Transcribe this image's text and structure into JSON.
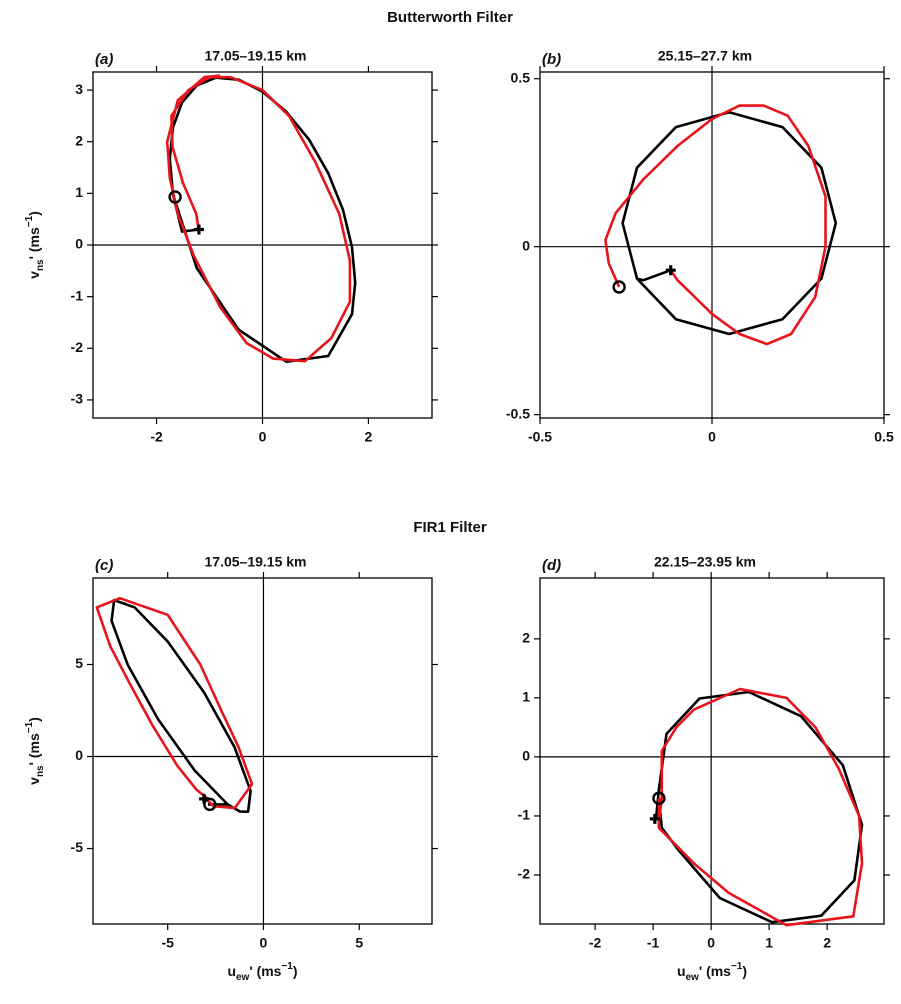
{
  "titles": [
    "Butterworth Filter",
    "FIR1 Filter"
  ],
  "chart_data": [
    {
      "type": "line",
      "label": "(a)",
      "title": "17.05–19.15 km",
      "ylabel": [
        "v",
        "ns",
        "' (ms",
        "−1",
        ")"
      ],
      "xlim": [
        -3.2,
        3.2
      ],
      "ylim": [
        -3.35,
        3.35
      ],
      "xticks": [
        -2,
        0,
        2
      ],
      "yticks": [
        -3,
        -2,
        -1,
        0,
        1,
        2,
        3
      ],
      "zero_lines": true,
      "series": [
        {
          "color": "#000000",
          "x": [
            -1.69,
            -1.24,
            -0.45,
            0.45,
            1.24,
            1.69,
            1.75,
            1.69,
            1.52,
            1.24,
            0.88,
            0.45,
            0,
            -0.45,
            -0.88,
            -1.24,
            -1.52,
            -1.69,
            -1.75,
            -1.69,
            -1.52,
            -1.2
          ],
          "values": [
            0.98,
            -0.45,
            -1.64,
            -2.26,
            -2.15,
            -1.34,
            -0.73,
            -0.04,
            0.68,
            1.39,
            2.04,
            2.58,
            2.97,
            3.2,
            3.24,
            3.09,
            2.76,
            2.28,
            1.67,
            0.98,
            0.26,
            0.3
          ]
        },
        {
          "color": "#e8141b",
          "x": [
            -1.2,
            -1.25,
            -1.5,
            -1.7,
            -1.72,
            -1.4,
            -1.0,
            -0.6,
            0,
            0.5,
            1.0,
            1.45,
            1.65,
            1.65,
            1.3,
            0.8,
            0.2,
            -0.3,
            -0.8,
            -1.3,
            -1.6,
            -1.75,
            -1.8,
            -1.6,
            -1.1,
            -0.8
          ],
          "values": [
            0.25,
            0.6,
            1.2,
            1.9,
            2.5,
            3.0,
            3.25,
            3.25,
            3.0,
            2.5,
            1.6,
            0.6,
            -0.3,
            -1.1,
            -1.8,
            -2.25,
            -2.2,
            -1.9,
            -1.2,
            -0.2,
            0.6,
            1.3,
            2.0,
            2.8,
            3.25,
            3.28
          ]
        },
        {
          "color": "#000000",
          "marker": "circle",
          "x": [
            -1.65
          ],
          "values": [
            0.93
          ]
        },
        {
          "color": "#000000",
          "marker": "cross",
          "x": [
            -1.2
          ],
          "values": [
            0.3
          ]
        }
      ]
    },
    {
      "type": "line",
      "label": "(b)",
      "title": "25.15–27.7 km",
      "xlim": [
        -0.5,
        0.5
      ],
      "ylim": [
        -0.51,
        0.52
      ],
      "xticks": [
        -0.5,
        0,
        0.5
      ],
      "yticks": [
        -0.5,
        0,
        0.5
      ],
      "zero_lines": true,
      "series": [
        {
          "color": "#000000",
          "x": [
            -0.12,
            -0.2,
            -0.218,
            -0.105,
            0.05,
            0.205,
            0.318,
            0.36,
            0.318,
            0.205,
            0.05,
            -0.105,
            -0.218,
            -0.26,
            -0.218
          ],
          "values": [
            -0.07,
            -0.1,
            -0.095,
            -0.216,
            -0.26,
            -0.216,
            -0.095,
            0.07,
            0.235,
            0.356,
            0.4,
            0.356,
            0.235,
            0.07,
            -0.095
          ]
        },
        {
          "color": "#e8141b",
          "x": [
            -0.27,
            -0.3,
            -0.31,
            -0.28,
            -0.2,
            -0.1,
            0,
            0.08,
            0.15,
            0.22,
            0.28,
            0.33,
            0.33,
            0.3,
            0.23,
            0.16,
            0.08,
            0,
            -0.06,
            -0.1,
            -0.12
          ],
          "values": [
            -0.12,
            -0.05,
            0.02,
            0.1,
            0.2,
            0.3,
            0.38,
            0.42,
            0.42,
            0.39,
            0.3,
            0.15,
            0,
            -0.15,
            -0.26,
            -0.29,
            -0.26,
            -0.2,
            -0.14,
            -0.1,
            -0.07
          ]
        },
        {
          "color": "#000000",
          "marker": "circle",
          "x": [
            -0.27
          ],
          "values": [
            -0.12
          ]
        },
        {
          "color": "#000000",
          "marker": "cross",
          "x": [
            -0.12
          ],
          "values": [
            -0.07
          ]
        }
      ]
    },
    {
      "type": "line",
      "label": "(c)",
      "title": "17.05–19.15 km",
      "ylabel": [
        "v",
        "ns",
        "' (ms",
        "−1",
        ")"
      ],
      "xlabel": [
        "u",
        "ew",
        "' (ms",
        "−1",
        ")"
      ],
      "xlim": [
        -8.9,
        8.8
      ],
      "ylim": [
        -9.1,
        9.7
      ],
      "xticks": [
        -5,
        0,
        5
      ],
      "yticks": [
        -5,
        0,
        5
      ],
      "zero_lines": true,
      "series": [
        {
          "color": "#000000",
          "x": [
            -2.9,
            -1.87,
            -1.23,
            -0.8,
            -0.67,
            -1.51,
            -3.1,
            -5.01,
            -6.73,
            -7.8,
            -7.93,
            -7.09,
            -5.5,
            -3.59,
            -1.87
          ],
          "values": [
            -2.6,
            -2.6,
            -2.99,
            -3.0,
            -1.87,
            0.51,
            3.48,
            6.26,
            8.1,
            8.5,
            7.37,
            4.99,
            2.02,
            -0.76,
            -2.6
          ]
        },
        {
          "color": "#e8141b",
          "x": [
            -3.0,
            -2.6,
            -1.5,
            -0.6,
            -1.3,
            -2.2,
            -3.3,
            -5.0,
            -7.5,
            -8.7,
            -8.0,
            -7.0,
            -5.8,
            -4.5,
            -3.5,
            -2.9
          ],
          "values": [
            -2.3,
            -2.7,
            -2.8,
            -1.5,
            0.5,
            2.5,
            5.0,
            7.7,
            8.6,
            8.1,
            6.0,
            4.0,
            1.7,
            -0.5,
            -1.8,
            -2.3
          ]
        },
        {
          "color": "#000000",
          "marker": "circle",
          "x": [
            -2.8
          ],
          "values": [
            -2.6
          ]
        },
        {
          "color": "#000000",
          "marker": "cross",
          "x": [
            -3.1
          ],
          "values": [
            -2.3
          ]
        }
      ]
    },
    {
      "type": "line",
      "label": "(d)",
      "title": "22.15–23.95 km",
      "xlabel": [
        "u",
        "ew",
        "' (ms",
        "−1",
        ")"
      ],
      "xlim": [
        -2.95,
        2.98
      ],
      "ylim": [
        -2.83,
        3.03
      ],
      "xticks": [
        -2,
        -1,
        0,
        1,
        2
      ],
      "yticks": [
        -2,
        -1,
        0,
        1,
        2
      ],
      "zero_lines": true,
      "series": [
        {
          "color": "#000000",
          "x": [
            -0.9,
            -0.85,
            -0.57,
            0.15,
            1.05,
            1.9,
            2.47,
            2.6,
            2.27,
            1.55,
            0.65,
            -0.2,
            -0.77,
            -0.9,
            -0.95
          ],
          "values": [
            -0.7,
            -1.2,
            -1.57,
            -2.39,
            -2.8,
            -2.69,
            -2.09,
            -1.15,
            -0.14,
            0.69,
            1.1,
            0.99,
            0.39,
            -0.55,
            -1.05
          ]
        },
        {
          "color": "#e8141b",
          "x": [
            -0.9,
            -0.85,
            -0.85,
            -0.6,
            -0.3,
            0.5,
            1.3,
            1.8,
            2.2,
            2.55,
            2.6,
            2.45,
            1.3,
            0.3,
            -0.3,
            -0.9,
            -0.9
          ],
          "values": [
            -1.1,
            -0.7,
            0.1,
            0.5,
            0.8,
            1.15,
            1.0,
            0.5,
            -0.2,
            -1.0,
            -1.8,
            -2.7,
            -2.85,
            -2.3,
            -1.8,
            -1.2,
            -0.7
          ]
        },
        {
          "color": "#000000",
          "marker": "circle",
          "x": [
            -0.9
          ],
          "values": [
            -0.7
          ]
        },
        {
          "color": "#000000",
          "marker": "cross",
          "x": [
            -0.97
          ],
          "values": [
            -1.05
          ]
        }
      ]
    }
  ]
}
